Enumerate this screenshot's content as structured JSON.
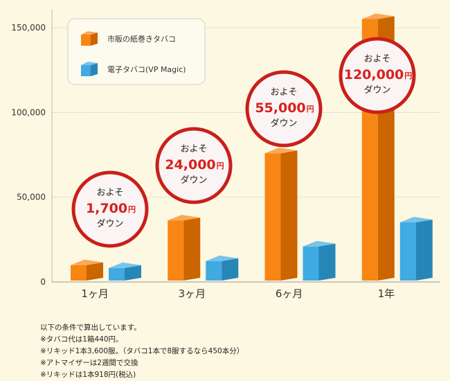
{
  "chart_data": {
    "type": "bar",
    "categories": [
      "1ヶ月",
      "3ヶ月",
      "6ヶ月",
      "1年"
    ],
    "series": [
      {
        "name": "市販の紙巻きタバコ",
        "color": "#f77b00",
        "values": [
          13200,
          39600,
          79200,
          158400
        ]
      },
      {
        "name": "電子タバコ(VP Magic)",
        "color": "#2fa3e0",
        "values": [
          11500,
          15600,
          24200,
          38400
        ]
      }
    ],
    "ylim": [
      0,
      160000
    ],
    "yticks": [
      0,
      50000,
      100000,
      150000
    ],
    "ytick_labels": [
      "0",
      "50,000",
      "100,000",
      "150,000"
    ],
    "grid": true,
    "legend_position": "top-left",
    "badges": [
      {
        "top": "およそ",
        "amount": "1,700",
        "unit": "円",
        "bottom": "ダウン",
        "value": 1700
      },
      {
        "top": "およそ",
        "amount": "24,000",
        "unit": "円",
        "bottom": "ダウン",
        "value": 24000
      },
      {
        "top": "およそ",
        "amount": "55,000",
        "unit": "円",
        "bottom": "ダウン",
        "value": 55000
      },
      {
        "top": "およそ",
        "amount": "120,000",
        "unit": "円",
        "bottom": "ダウン",
        "value": 120000
      }
    ]
  },
  "notes": [
    "以下の条件で算出しています。",
    "※タバコ代は1箱440円。",
    "※リキッド1本3,600服。（タバコ1本で8服するなら450本分）",
    "※アトマイザーは2週間で交換",
    "※リキッドは1本918円(税込)"
  ]
}
